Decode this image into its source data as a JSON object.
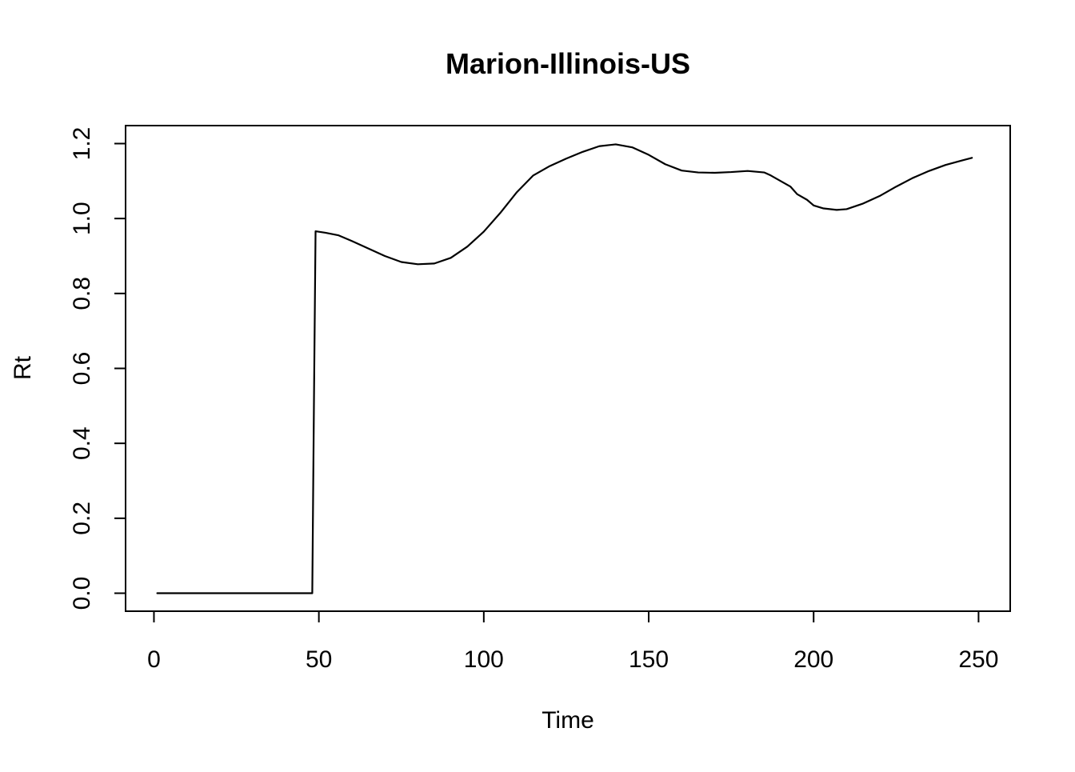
{
  "chart_data": {
    "type": "line",
    "title": "Marion-Illinois-US",
    "xlabel": "Time",
    "ylabel": "Rt",
    "xlim": [
      -8.6,
      259.6
    ],
    "ylim": [
      -0.048,
      1.248
    ],
    "grid": false,
    "legend": "none",
    "x_ticks": [
      0,
      50,
      100,
      150,
      200,
      250
    ],
    "y_ticks": [
      0.0,
      0.2,
      0.4,
      0.6,
      0.8,
      1.0,
      1.2
    ],
    "x_tick_labels": [
      "0",
      "50",
      "100",
      "150",
      "200",
      "250"
    ],
    "y_tick_labels": [
      "0.0",
      "0.2",
      "0.4",
      "0.6",
      "0.8",
      "1.0",
      "1.2"
    ],
    "series": [
      {
        "color": "#000000",
        "x": [
          1,
          10,
          20,
          30,
          40,
          48,
          48.5,
          49,
          52,
          56,
          60,
          65,
          70,
          75,
          80,
          85,
          90,
          95,
          100,
          105,
          110,
          115,
          120,
          125,
          130,
          135,
          140,
          145,
          150,
          155,
          160,
          165,
          170,
          175,
          180,
          185,
          187,
          190,
          193,
          195,
          198,
          200,
          203,
          207,
          210,
          215,
          220,
          225,
          230,
          235,
          240,
          245,
          248
        ],
        "y": [
          0,
          0,
          0,
          0,
          0,
          0,
          0.5,
          0.966,
          0.962,
          0.955,
          0.94,
          0.92,
          0.9,
          0.884,
          0.878,
          0.88,
          0.895,
          0.925,
          0.965,
          1.015,
          1.07,
          1.115,
          1.14,
          1.16,
          1.178,
          1.193,
          1.198,
          1.19,
          1.17,
          1.145,
          1.128,
          1.123,
          1.122,
          1.124,
          1.127,
          1.123,
          1.115,
          1.1,
          1.085,
          1.065,
          1.05,
          1.035,
          1.027,
          1.023,
          1.025,
          1.04,
          1.06,
          1.085,
          1.108,
          1.127,
          1.143,
          1.155,
          1.162
        ]
      }
    ]
  }
}
